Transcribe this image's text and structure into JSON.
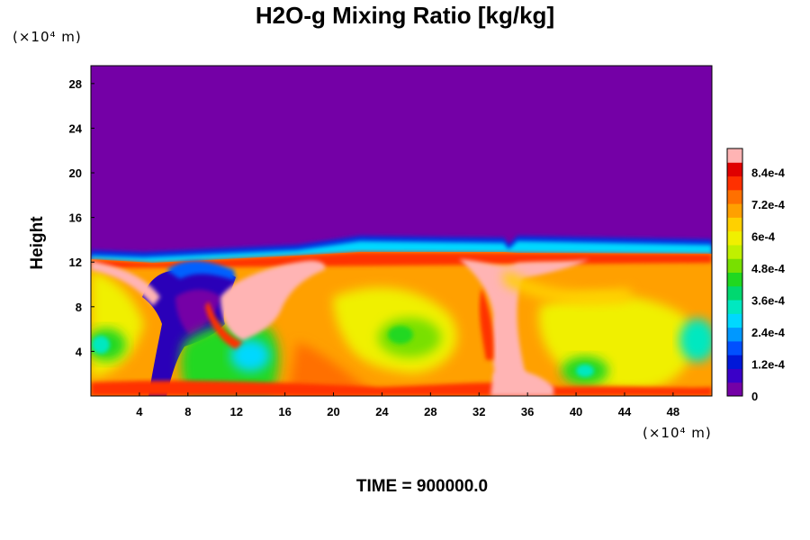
{
  "chart_data": {
    "type": "heatmap",
    "title": "H2O-g Mixing Ratio [kg/kg]",
    "ylabel": "Height",
    "x_unit_label": "(×10⁴ m)",
    "y_unit_label": "(×10⁴ m)",
    "x_ticks": [
      4,
      8,
      12,
      16,
      20,
      24,
      28,
      32,
      36,
      40,
      44,
      48
    ],
    "y_ticks": [
      4,
      8,
      12,
      16,
      20,
      24,
      28
    ],
    "xlim": [
      0,
      51.2
    ],
    "ylim": [
      0,
      29.6
    ],
    "colorbar": {
      "ticks": [
        0,
        0.00012,
        0.00024,
        0.00036,
        0.00048,
        0.0006,
        0.00072,
        0.00084
      ],
      "tick_labels": [
        "0",
        "1.2e-4",
        "2.4e-4",
        "3.6e-4",
        "4.8e-4",
        "6e-4",
        "7.2e-4",
        "8.4e-4"
      ],
      "range": [
        0,
        0.00093
      ],
      "colors": [
        "#7400a6",
        "#3a00c8",
        "#0018d8",
        "#0050ff",
        "#0098ff",
        "#00d8ff",
        "#00e8c0",
        "#00d870",
        "#20d820",
        "#78e000",
        "#c0f000",
        "#f0f000",
        "#ffd000",
        "#ffa000",
        "#ff7000",
        "#ff3000",
        "#e00000",
        "#ffb4b4"
      ]
    },
    "annotation": "TIME = 900000.0"
  }
}
